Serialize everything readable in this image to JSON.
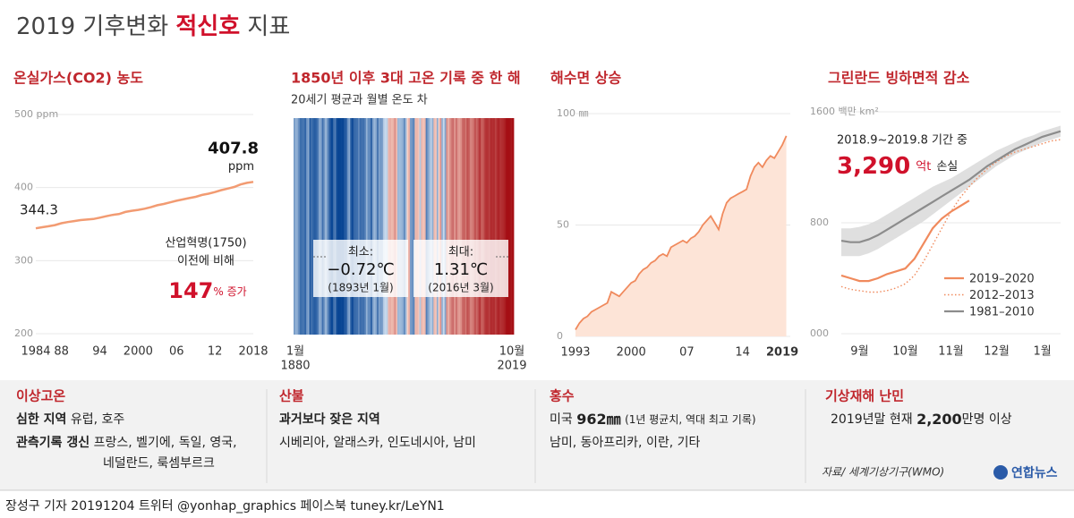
{
  "title": {
    "pre": "2019 기후변화",
    "highlight": "적신호",
    "post": "지표"
  },
  "chart_data": [
    {
      "type": "line",
      "title": "온실가스(CO2) 농도",
      "x": [
        1984,
        1985,
        1986,
        1987,
        1988,
        1989,
        1990,
        1991,
        1992,
        1993,
        1994,
        1995,
        1996,
        1997,
        1998,
        1999,
        2000,
        2001,
        2002,
        2003,
        2004,
        2005,
        2006,
        2007,
        2008,
        2009,
        2010,
        2011,
        2012,
        2013,
        2014,
        2015,
        2016,
        2017,
        2018
      ],
      "values": [
        344.3,
        345.7,
        347.0,
        348.6,
        351.2,
        352.8,
        354.2,
        355.5,
        356.3,
        357.0,
        358.8,
        360.8,
        362.6,
        363.7,
        366.6,
        368.3,
        369.5,
        371.1,
        373.2,
        375.8,
        377.5,
        379.8,
        381.9,
        383.8,
        385.6,
        387.4,
        389.9,
        391.6,
        393.8,
        396.5,
        398.6,
        400.8,
        404.2,
        406.5,
        407.8
      ],
      "color": "#f29b72",
      "xlim": [
        1984,
        2018
      ],
      "ylim": [
        200,
        500
      ],
      "xticks": [
        1984,
        {
          "value": 1988,
          "label": "88"
        },
        {
          "value": 1994,
          "label": "94"
        },
        2000,
        {
          "value": 2006,
          "label": "06"
        },
        {
          "value": 2012,
          "label": "12"
        },
        2018
      ],
      "yticks": [
        200,
        300,
        400,
        {
          "value": 500,
          "label": "500 ppm"
        }
      ],
      "grid": true,
      "unit": "ppm",
      "annotation": {
        "lines": [
          "산업혁명(1750)",
          "이전에 비해"
        ],
        "value": 147,
        "unit": "% 증가"
      }
    },
    {
      "type": "stripes",
      "title": "1850년 이후 3대 고온 기록 중 한 해",
      "subtitle": "20세기 평균과 월별 온도 차",
      "x": [
        1880,
        1881,
        1882,
        1883,
        1884,
        1885,
        1886,
        1887,
        1888,
        1889,
        1890,
        1891,
        1892,
        1893,
        1894,
        1895,
        1896,
        1897,
        1898,
        1899,
        1900,
        1901,
        1902,
        1903,
        1904,
        1905,
        1906,
        1907,
        1908,
        1909,
        1910,
        1911,
        1912,
        1913,
        1914,
        1915,
        1916,
        1917,
        1918,
        1919,
        1920,
        1921,
        1922,
        1923,
        1924,
        1925,
        1926,
        1927,
        1928,
        1929,
        1930,
        1931,
        1932,
        1933,
        1934,
        1935,
        1936,
        1937,
        1938,
        1939,
        1940,
        1941,
        1942,
        1943,
        1944,
        1945,
        1946,
        1947,
        1948,
        1949,
        1950,
        1951,
        1952,
        1953,
        1954,
        1955,
        1956,
        1957,
        1958,
        1959,
        1960,
        1961,
        1962,
        1963,
        1964,
        1965,
        1966,
        1967,
        1968,
        1969,
        1970,
        1971,
        1972,
        1973,
        1974,
        1975,
        1976,
        1977,
        1978,
        1979,
        1980,
        1981,
        1982,
        1983,
        1984,
        1985,
        1986,
        1987,
        1988,
        1989,
        1990,
        1991,
        1992,
        1993,
        1994,
        1995,
        1996,
        1997,
        1998,
        1999,
        2000,
        2001,
        2002,
        2003,
        2004,
        2005,
        2006,
        2007,
        2008,
        2009,
        2010,
        2011,
        2012,
        2013,
        2014,
        2015,
        2016,
        2017,
        2018,
        2019
      ],
      "values": [
        -0.12,
        -0.07,
        -0.09,
        -0.17,
        -0.26,
        -0.24,
        -0.23,
        -0.29,
        -0.14,
        -0.09,
        -0.33,
        -0.24,
        -0.29,
        -0.32,
        -0.29,
        -0.22,
        -0.09,
        -0.1,
        -0.25,
        -0.14,
        -0.06,
        -0.13,
        -0.25,
        -0.35,
        -0.44,
        -0.27,
        -0.2,
        -0.38,
        -0.43,
        -0.44,
        -0.4,
        -0.43,
        -0.33,
        -0.32,
        -0.15,
        -0.09,
        -0.32,
        -0.39,
        -0.28,
        -0.26,
        -0.25,
        -0.17,
        -0.27,
        -0.24,
        -0.25,
        -0.2,
        -0.07,
        -0.16,
        -0.17,
        -0.31,
        -0.11,
        -0.06,
        -0.1,
        -0.24,
        -0.1,
        -0.14,
        -0.11,
        -0.02,
        -0.01,
        -0.02,
        0.06,
        0.08,
        0.05,
        0.07,
        0.18,
        0.05,
        -0.06,
        -0.05,
        -0.06,
        -0.08,
        -0.17,
        -0.05,
        0.01,
        0.08,
        -0.12,
        -0.14,
        -0.19,
        0.05,
        0.06,
        0.03,
        -0.03,
        0.06,
        0.03,
        0.05,
        -0.2,
        -0.11,
        -0.06,
        -0.02,
        -0.08,
        0.05,
        0.03,
        -0.08,
        0.01,
        0.16,
        -0.07,
        -0.01,
        -0.1,
        0.18,
        0.07,
        0.16,
        0.26,
        0.32,
        0.14,
        0.31,
        0.16,
        0.12,
        0.18,
        0.32,
        0.39,
        0.27,
        0.45,
        0.4,
        0.22,
        0.23,
        0.31,
        0.45,
        0.33,
        0.46,
        0.61,
        0.38,
        0.39,
        0.54,
        0.63,
        0.62,
        0.54,
        0.68,
        0.64,
        0.66,
        0.54,
        0.66,
        0.72,
        0.61,
        0.65,
        0.68,
        0.75,
        0.9,
        0.95,
        0.85,
        0.78,
        0.93
      ],
      "xlim": [
        1880,
        2019
      ],
      "xticks": [
        {
          "value": 1880,
          "label": "1880",
          "month": "1월"
        },
        {
          "value": 2019,
          "label": "2019",
          "month": "10월"
        }
      ],
      "min": {
        "value": -0.72,
        "label": "−0.72℃",
        "title": "최소:",
        "date": "(1893년 1월)"
      },
      "max": {
        "value": 1.31,
        "label": "1.31℃",
        "title": "최대:",
        "date": "(2016년 3월)"
      }
    },
    {
      "type": "area",
      "title": "해수면 상승",
      "x": [
        1993,
        1993.5,
        1994,
        1994.5,
        1995,
        1995.5,
        1996,
        1996.5,
        1997,
        1997.5,
        1998,
        1998.5,
        1999,
        1999.5,
        2000,
        2000.5,
        2001,
        2001.5,
        2002,
        2002.5,
        2003,
        2003.5,
        2004,
        2004.5,
        2005,
        2005.5,
        2006,
        2006.5,
        2007,
        2007.5,
        2008,
        2008.5,
        2009,
        2009.5,
        2010,
        2010.5,
        2011,
        2011.5,
        2012,
        2012.5,
        2013,
        2013.5,
        2014,
        2014.5,
        2015,
        2015.5,
        2016,
        2016.5,
        2017,
        2017.5,
        2018,
        2018.5,
        2019,
        2019.5
      ],
      "values": [
        3,
        6,
        8,
        9,
        11,
        12,
        13,
        14,
        15,
        20,
        19,
        18,
        20,
        22,
        24,
        25,
        28,
        30,
        31,
        33,
        34,
        36,
        37,
        36,
        40,
        41,
        42,
        43,
        42,
        44,
        45,
        47,
        50,
        52,
        54,
        51,
        48,
        55,
        60,
        62,
        63,
        64,
        65,
        66,
        72,
        76,
        78,
        76,
        79,
        81,
        80,
        83,
        86,
        90
      ],
      "color": "#f08a5d",
      "fill": "#fde4d7",
      "xlim": [
        1993,
        2020
      ],
      "ylim": [
        0,
        100
      ],
      "xticks": [
        1993,
        2000,
        {
          "value": 2007,
          "label": "07"
        },
        {
          "value": 2014,
          "label": "14"
        },
        2019
      ],
      "yticks": [
        0,
        50,
        {
          "value": 100,
          "label": "100 ㎜"
        }
      ],
      "grid": true
    },
    {
      "type": "line",
      "title": "그린란드 빙하면적 감소",
      "categories": [
        null,
        null,
        "9월",
        null,
        null,
        null,
        null,
        "10월",
        null,
        null,
        null,
        null,
        "11월",
        null,
        null,
        null,
        null,
        "12월",
        null,
        null,
        null,
        null,
        "1월",
        null,
        null
      ],
      "ylim": [
        0,
        1600
      ],
      "yticks": [
        {
          "value": 0,
          "label": "000"
        },
        800,
        {
          "value": 1600,
          "label": "1600 백만 km²"
        }
      ],
      "series": [
        {
          "name": "2019–2020",
          "color": "#f08a5d",
          "style": "solid",
          "values": [
            420,
            400,
            380,
            380,
            400,
            430,
            450,
            470,
            540,
            650,
            760,
            830,
            880,
            920,
            960,
            null,
            null,
            null,
            null,
            null,
            null,
            null,
            null,
            null,
            null
          ]
        },
        {
          "name": "2012–2013",
          "color": "#f08a5d",
          "style": "dotted",
          "values": [
            340,
            320,
            310,
            300,
            300,
            310,
            330,
            360,
            420,
            520,
            640,
            760,
            880,
            980,
            1060,
            1130,
            1190,
            1240,
            1280,
            1310,
            1330,
            1350,
            1370,
            1390,
            1400
          ]
        },
        {
          "name": "1981–2010",
          "color": "#8c8c8c",
          "style": "solid",
          "band_color": "#dcdcdc",
          "values": [
            670,
            660,
            660,
            680,
            710,
            750,
            790,
            830,
            870,
            910,
            950,
            990,
            1030,
            1070,
            1110,
            1160,
            1210,
            1250,
            1290,
            1330,
            1360,
            1390,
            1420,
            1440,
            1460
          ],
          "low": [
            560,
            560,
            560,
            580,
            610,
            650,
            690,
            730,
            770,
            810,
            860,
            910,
            960,
            1010,
            1060,
            1110,
            1160,
            1210,
            1250,
            1290,
            1320,
            1350,
            1380,
            1400,
            1420
          ],
          "high": [
            760,
            760,
            770,
            790,
            820,
            860,
            900,
            940,
            980,
            1020,
            1060,
            1090,
            1120,
            1160,
            1200,
            1240,
            1280,
            1320,
            1350,
            1380,
            1410,
            1430,
            1460,
            1480,
            1500
          ]
        }
      ],
      "legend": "lower right",
      "annotation": {
        "period": "2018.9~2019.8 기간 중",
        "label": "3,290",
        "unit": "억t",
        "suffix": "손실"
      }
    }
  ],
  "sections": [
    {
      "heading": "이상고온",
      "items": [
        {
          "label": "심한 지역",
          "text": "유럽, 호주"
        },
        {
          "label": "관측기록 갱신",
          "text": "프랑스, 벨기에, 독일, 영국,",
          "text2": "네덜란드, 룩셈부르크"
        }
      ]
    },
    {
      "heading": "산불",
      "label": "과거보다 잦은 지역",
      "text": "시베리아, 알래스카, 인도네시아, 남미"
    },
    {
      "heading": "홍수",
      "pre": "미국",
      "value": "962㎜",
      "note": "(1년 평균치, 역대 최고 기록)",
      "text": "남미, 동아프리카, 이란, 기타"
    },
    {
      "heading": "기상재해 난민",
      "pre": "2019년말 현재",
      "value": "2,200",
      "post": "만명 이상"
    }
  ],
  "source": "자료/ 세계기상기구(WMO)",
  "logo": "연합뉴스",
  "footer": "장성구 기자  20191204  트위터 @yonhap_graphics  페이스북 tuney.kr/LeYN1"
}
